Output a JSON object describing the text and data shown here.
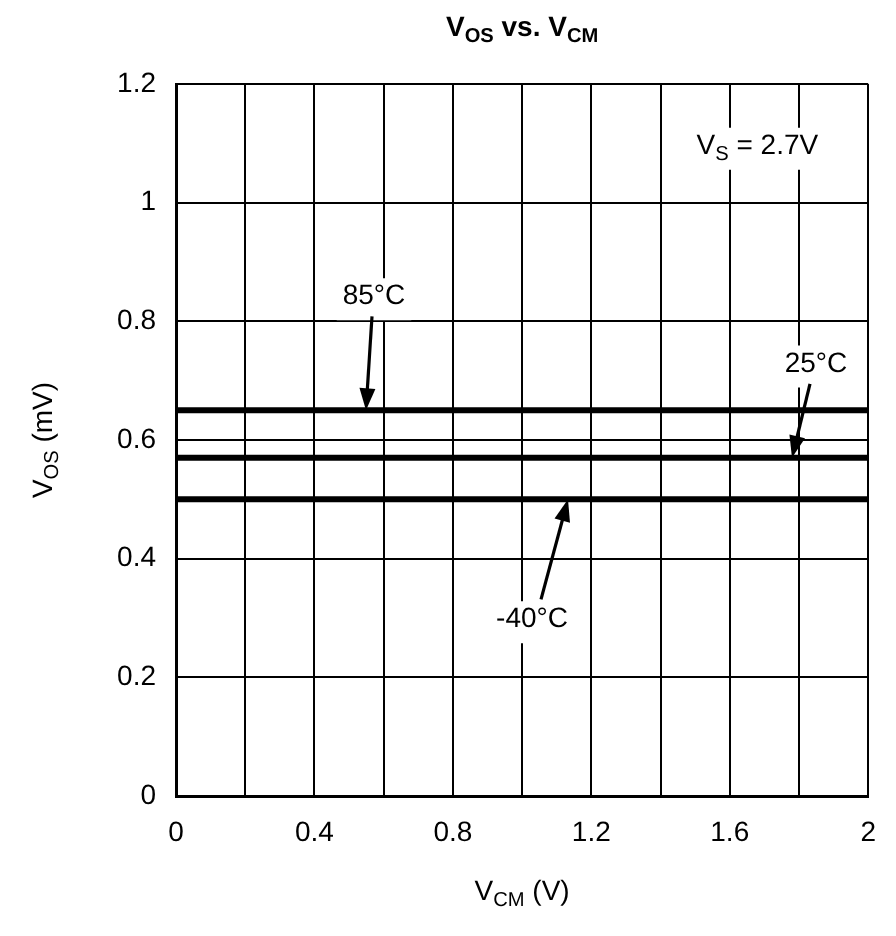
{
  "chart_data": {
    "type": "line",
    "title": "V$_{OS}$ vs. V$_{CM}$",
    "xlabel": "V$_{CM}$ (V)",
    "ylabel": "V$_{OS}$ (mV)",
    "annotations": [
      "V$_{S}$ = 2.7V"
    ],
    "x": [
      0,
      2
    ],
    "series": [
      {
        "name": "85°C",
        "color": "#000000",
        "values": [
          0.65,
          0.65
        ]
      },
      {
        "name": "25°C",
        "color": "#000000",
        "values": [
          0.57,
          0.57
        ]
      },
      {
        "name": "-40°C",
        "color": "#000000",
        "values": [
          0.5,
          0.5
        ]
      }
    ],
    "xlim": [
      0,
      2
    ],
    "xticks": [
      0,
      {
        "value": 0.2,
        "label": null
      },
      0.4,
      {
        "value": 0.6,
        "label": null
      },
      0.8,
      {
        "value": 1.0,
        "label": null
      },
      1.2,
      {
        "value": 1.4,
        "label": null
      },
      1.6,
      {
        "value": 1.8,
        "label": null
      },
      2
    ],
    "ylim": [
      0,
      1.2
    ],
    "yticks": [
      0,
      0.2,
      0.4,
      0.6,
      0.8,
      1,
      1.2
    ],
    "grid": true,
    "legend": false,
    "marker": "none",
    "line_style": "solid"
  }
}
